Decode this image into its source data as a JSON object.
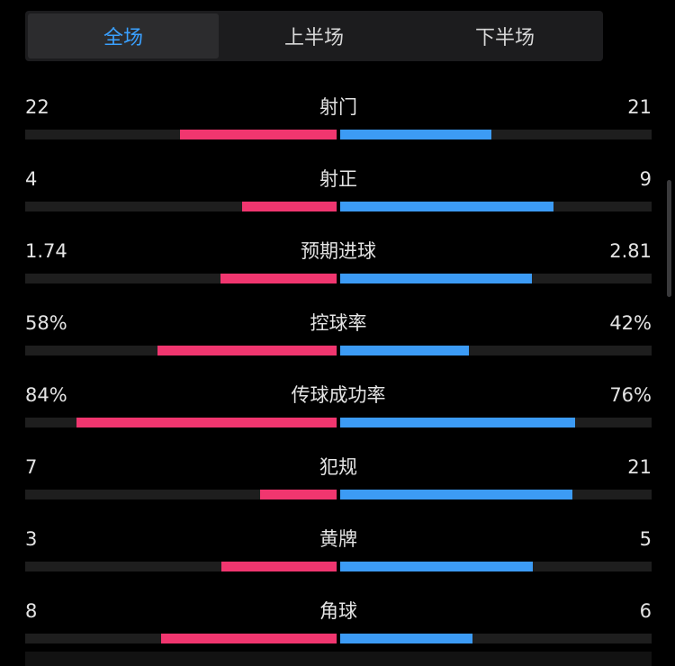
{
  "tabs": [
    {
      "label": "全场",
      "active": true
    },
    {
      "label": "上半场",
      "active": false
    },
    {
      "label": "下半场",
      "active": false
    }
  ],
  "colors": {
    "home": "#f0366f",
    "away": "#3c9bf5",
    "active_tab": "#3aa0ff"
  },
  "stats": [
    {
      "label": "射门",
      "home": "22",
      "away": "21",
      "home_frac": 0.51,
      "away_frac": 0.49
    },
    {
      "label": "射正",
      "home": "4",
      "away": "9",
      "home_frac": 0.31,
      "away_frac": 0.69
    },
    {
      "label": "预期进球",
      "home": "1.74",
      "away": "2.81",
      "home_frac": 0.38,
      "away_frac": 0.62
    },
    {
      "label": "控球率",
      "home": "58%",
      "away": "42%",
      "home_frac": 0.58,
      "away_frac": 0.42
    },
    {
      "label": "传球成功率",
      "home": "84%",
      "away": "76%",
      "home_frac": 0.84,
      "away_frac": 0.76
    },
    {
      "label": "犯规",
      "home": "7",
      "away": "21",
      "home_frac": 0.25,
      "away_frac": 0.75
    },
    {
      "label": "黄牌",
      "home": "3",
      "away": "5",
      "home_frac": 0.375,
      "away_frac": 0.625
    },
    {
      "label": "角球",
      "home": "8",
      "away": "6",
      "home_frac": 0.57,
      "away_frac": 0.43
    }
  ]
}
